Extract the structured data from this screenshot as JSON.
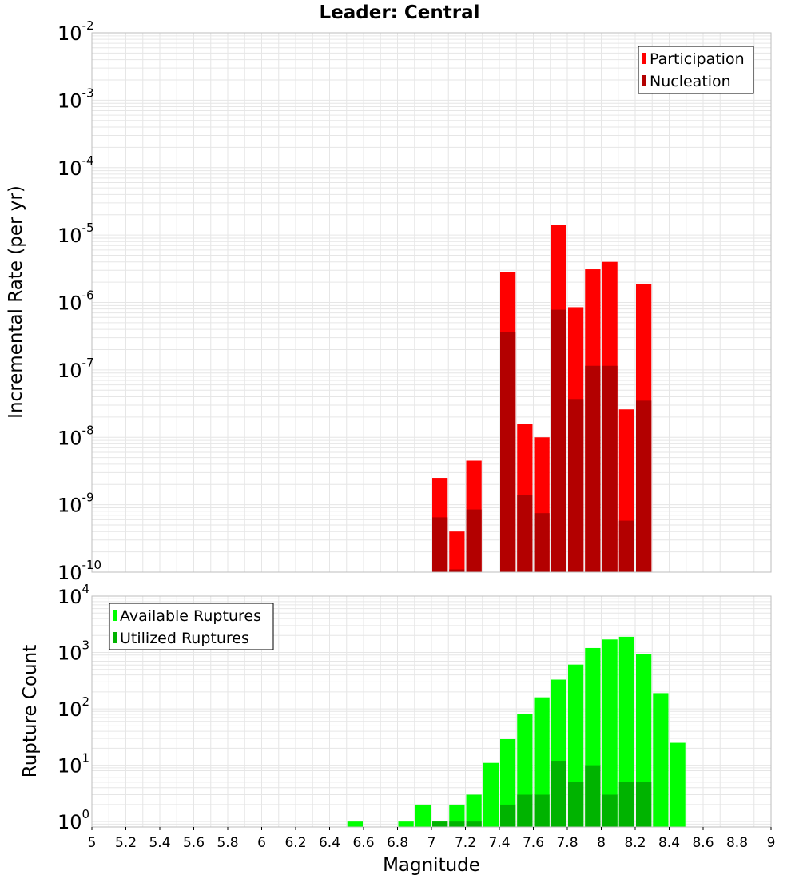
{
  "chart_data": [
    {
      "type": "bar",
      "title": "Leader: Central",
      "xlabel": "",
      "ylabel": "Incremental Rate (per yr)",
      "yscale": "log",
      "ylim": [
        1e-10,
        0.01
      ],
      "xlim": [
        5,
        9
      ],
      "bin_width": 0.1,
      "grid": true,
      "legend_position": "top-right",
      "x": [
        7.05,
        7.15,
        7.25,
        7.45,
        7.55,
        7.65,
        7.75,
        7.85,
        7.95,
        8.05,
        8.15,
        8.25
      ],
      "series": [
        {
          "name": "Participation",
          "color": "#ff0000",
          "values": [
            2.5e-09,
            4e-10,
            4.5e-09,
            2.8e-06,
            1.6e-08,
            1e-08,
            1.4e-05,
            8.5e-07,
            3.1e-06,
            4e-06,
            2.6e-08,
            1.9e-06
          ]
        },
        {
          "name": "Nucleation",
          "color": "#b30000",
          "values": [
            6.5e-10,
            1.1e-10,
            8.5e-10,
            3.6e-07,
            1.4e-09,
            7.5e-10,
            7.8e-07,
            3.7e-08,
            1.15e-07,
            1.15e-07,
            5.8e-10,
            3.5e-08
          ]
        }
      ],
      "y_ticks": [
        {
          "base": "10",
          "exp": "-2"
        },
        {
          "base": "10",
          "exp": "-3"
        },
        {
          "base": "10",
          "exp": "-4"
        },
        {
          "base": "10",
          "exp": "-5"
        },
        {
          "base": "10",
          "exp": "-6"
        },
        {
          "base": "10",
          "exp": "-7"
        },
        {
          "base": "10",
          "exp": "-8"
        },
        {
          "base": "10",
          "exp": "-9"
        },
        {
          "base": "10",
          "exp": "-10"
        }
      ]
    },
    {
      "type": "bar",
      "title": "",
      "xlabel": "Magnitude",
      "ylabel": "Rupture Count",
      "yscale": "log",
      "ylim": [
        0.8,
        10000
      ],
      "xlim": [
        5,
        9
      ],
      "bin_width": 0.1,
      "grid": true,
      "legend_position": "top-left",
      "x_tick_labels": [
        "5",
        "5.2",
        "5.4",
        "5.6",
        "5.8",
        "6",
        "6.2",
        "6.4",
        "6.6",
        "6.8",
        "7",
        "7.2",
        "7.4",
        "7.6",
        "7.8",
        "8",
        "8.2",
        "8.4",
        "8.6",
        "8.8",
        "9"
      ],
      "series": [
        {
          "name": "Available Ruptures",
          "color": "#00ff00",
          "x": [
            6.55,
            6.85,
            6.95,
            7.05,
            7.15,
            7.25,
            7.35,
            7.45,
            7.55,
            7.65,
            7.75,
            7.85,
            7.95,
            8.05,
            8.15,
            8.25,
            8.35,
            8.45
          ],
          "values": [
            1,
            1,
            2,
            1,
            2,
            3,
            11,
            29,
            80,
            160,
            330,
            610,
            1200,
            1700,
            1900,
            950,
            190,
            25
          ]
        },
        {
          "name": "Utilized Ruptures",
          "color": "#00b300",
          "x": [
            7.05,
            7.15,
            7.25,
            7.45,
            7.55,
            7.65,
            7.75,
            7.85,
            7.95,
            8.05,
            8.15,
            8.25
          ],
          "values": [
            1,
            1,
            1,
            2,
            3,
            3,
            12,
            5,
            10,
            3,
            5,
            5
          ]
        }
      ],
      "y_ticks": [
        {
          "base": "10",
          "exp": "4"
        },
        {
          "base": "10",
          "exp": "3"
        },
        {
          "base": "10",
          "exp": "2"
        },
        {
          "base": "10",
          "exp": "1"
        },
        {
          "base": "10",
          "exp": "0"
        }
      ]
    }
  ]
}
